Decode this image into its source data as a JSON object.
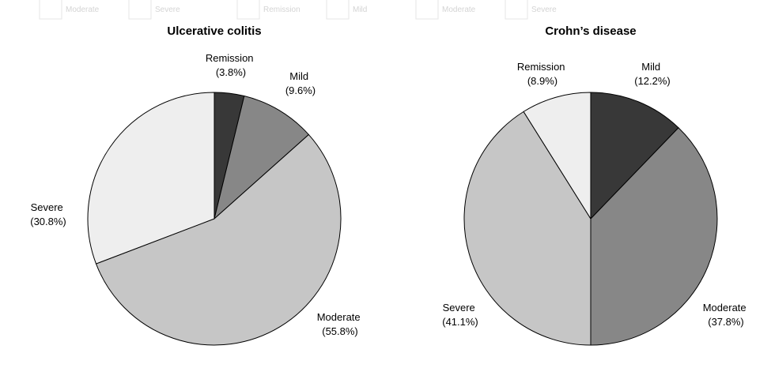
{
  "chart_data": [
    {
      "type": "pie",
      "title": "Ulcerative colitis",
      "start": "12 o'clock",
      "direction": "clockwise",
      "slices": [
        {
          "name": "Remission",
          "pct_label": "(3.8%)",
          "value": 3.8,
          "color": "#383838"
        },
        {
          "name": "Mild",
          "pct_label": "(9.6%)",
          "value": 9.6,
          "color": "#878787"
        },
        {
          "name": "Moderate",
          "pct_label": "(55.8%)",
          "value": 55.8,
          "color": "#c6c6c6"
        },
        {
          "name": "Severe",
          "pct_label": "(30.8%)",
          "value": 30.8,
          "color": "#eeeeee"
        }
      ]
    },
    {
      "type": "pie",
      "title": "Crohn’s disease",
      "start": "12 o'clock",
      "direction": "clockwise",
      "slices": [
        {
          "name": "Mild",
          "pct_label": "(12.2%)",
          "value": 12.2,
          "color": "#383838"
        },
        {
          "name": "Moderate",
          "pct_label": "(37.8%)",
          "value": 37.8,
          "color": "#878787"
        },
        {
          "name": "Severe",
          "pct_label": "(41.1%)",
          "value": 41.1,
          "color": "#c6c6c6"
        },
        {
          "name": "Remission",
          "pct_label": "(8.9%)",
          "value": 8.9,
          "color": "#eeeeee"
        }
      ]
    }
  ],
  "faded_legend": {
    "items": [
      "Moderate",
      "Severe",
      "Remission",
      "Mild",
      "Moderate",
      "Severe"
    ]
  }
}
